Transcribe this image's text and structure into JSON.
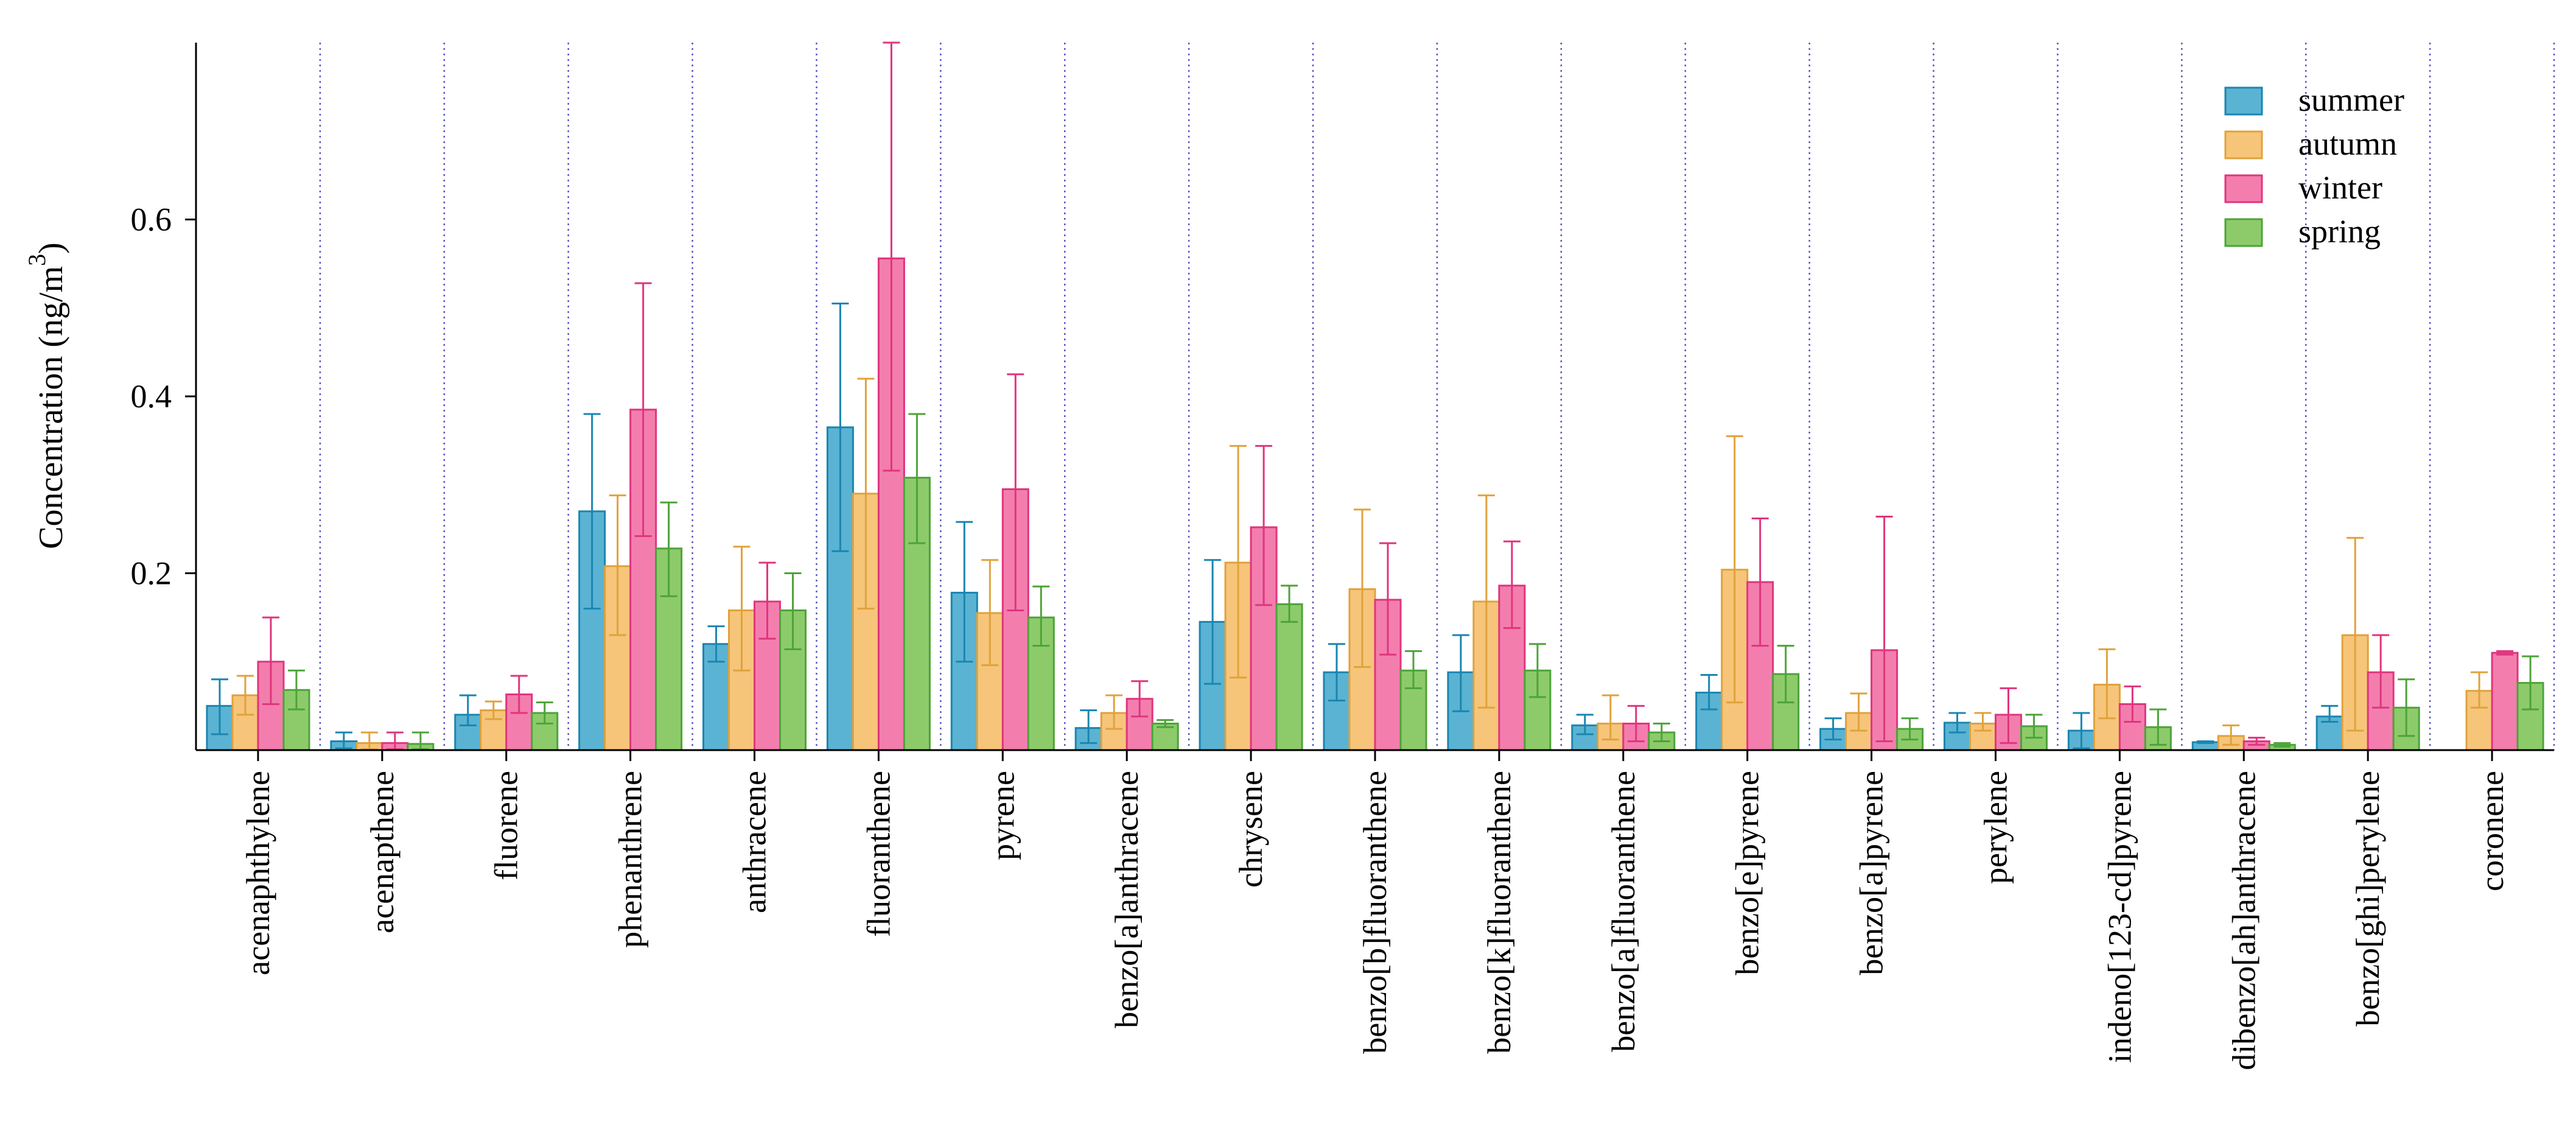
{
  "chart_data": {
    "type": "bar",
    "title": "",
    "xlabel": "",
    "ylabel": "Concentration (ng/m",
    "ylabel_superscript": "3",
    "ylabel_close": ")",
    "ylim": [
      0,
      0.8
    ],
    "yticks": [
      0.2,
      0.4,
      0.6
    ],
    "ytick_labels": [
      "0.2",
      "0.4",
      "0.6"
    ],
    "legend_position": "top-right",
    "grid": "vertical dotted separators between categories",
    "categories": [
      "acenaphthylene",
      "acenapthene",
      "fluorene",
      "phenanthrene",
      "anthracene",
      "fluoranthene",
      "pyrene",
      "benzo[a]anthracene",
      "chrysene",
      "benzo[b]fluoranthene",
      "benzo[k]fluoranthene",
      "benzo[a]fluoranthene",
      "benzo[e]pyrene",
      "benzo[a]pyrene",
      "perylene",
      "indeno[123-cd]pyrene",
      "dibenzo[ah]anthracene",
      "benzo[ghi]perylene",
      "coronene"
    ],
    "series": [
      {
        "name": "summer",
        "fill": "#5BB3D3",
        "stroke": "#1A86B0",
        "values": [
          0.05,
          0.01,
          0.04,
          0.27,
          0.12,
          0.365,
          0.178,
          0.025,
          0.145,
          0.088,
          0.088,
          0.028,
          0.065,
          0.024,
          0.031,
          0.022,
          0.009,
          0.038,
          null
        ],
        "error_low": [
          0.018,
          0.002,
          0.028,
          0.16,
          0.1,
          0.225,
          0.1,
          0.008,
          0.075,
          0.056,
          0.044,
          0.018,
          0.046,
          0.012,
          0.02,
          0.002,
          0.008,
          0.032,
          null
        ],
        "error_high": [
          0.08,
          0.02,
          0.062,
          0.38,
          0.14,
          0.505,
          0.258,
          0.045,
          0.215,
          0.12,
          0.13,
          0.04,
          0.085,
          0.036,
          0.042,
          0.042,
          0.01,
          0.05,
          null
        ]
      },
      {
        "name": "autumn",
        "fill": "#F6C57A",
        "stroke": "#E0A23C",
        "values": [
          0.062,
          0.008,
          0.045,
          0.208,
          0.158,
          0.29,
          0.155,
          0.042,
          0.212,
          0.182,
          0.168,
          0.03,
          0.204,
          0.042,
          0.03,
          0.074,
          0.016,
          0.13,
          0.067
        ],
        "error_low": [
          0.04,
          0.001,
          0.035,
          0.13,
          0.09,
          0.16,
          0.096,
          0.024,
          0.082,
          0.094,
          0.048,
          0.012,
          0.054,
          0.022,
          0.022,
          0.036,
          0.006,
          0.022,
          0.048
        ],
        "error_high": [
          0.084,
          0.02,
          0.055,
          0.288,
          0.23,
          0.42,
          0.215,
          0.062,
          0.344,
          0.272,
          0.288,
          0.062,
          0.355,
          0.064,
          0.042,
          0.114,
          0.028,
          0.24,
          0.088
        ]
      },
      {
        "name": "winter",
        "fill": "#F37EAE",
        "stroke": "#E0357E",
        "values": [
          0.1,
          0.008,
          0.063,
          0.385,
          0.168,
          0.556,
          0.295,
          0.058,
          0.252,
          0.17,
          0.186,
          0.03,
          0.19,
          0.113,
          0.04,
          0.052,
          0.01,
          0.088,
          0.11
        ],
        "error_low": [
          0.052,
          0.001,
          0.042,
          0.242,
          0.126,
          0.316,
          0.158,
          0.038,
          0.164,
          0.108,
          0.138,
          0.01,
          0.118,
          0.01,
          0.008,
          0.032,
          0.006,
          0.048,
          0.108
        ],
        "error_high": [
          0.15,
          0.02,
          0.084,
          0.528,
          0.212,
          0.8,
          0.425,
          0.078,
          0.344,
          0.234,
          0.236,
          0.05,
          0.262,
          0.264,
          0.07,
          0.072,
          0.014,
          0.13,
          0.112
        ]
      },
      {
        "name": "spring",
        "fill": "#8DCB6A",
        "stroke": "#4DA33A",
        "values": [
          0.068,
          0.007,
          0.042,
          0.228,
          0.158,
          0.308,
          0.15,
          0.03,
          0.165,
          0.09,
          0.09,
          0.02,
          0.086,
          0.024,
          0.027,
          0.026,
          0.006,
          0.048,
          0.076
        ],
        "error_low": [
          0.046,
          0.001,
          0.03,
          0.174,
          0.114,
          0.234,
          0.118,
          0.026,
          0.145,
          0.07,
          0.06,
          0.01,
          0.054,
          0.012,
          0.014,
          0.006,
          0.004,
          0.016,
          0.046
        ],
        "error_high": [
          0.09,
          0.02,
          0.054,
          0.28,
          0.2,
          0.38,
          0.185,
          0.034,
          0.186,
          0.112,
          0.12,
          0.03,
          0.118,
          0.036,
          0.04,
          0.046,
          0.008,
          0.08,
          0.106
        ]
      }
    ]
  }
}
